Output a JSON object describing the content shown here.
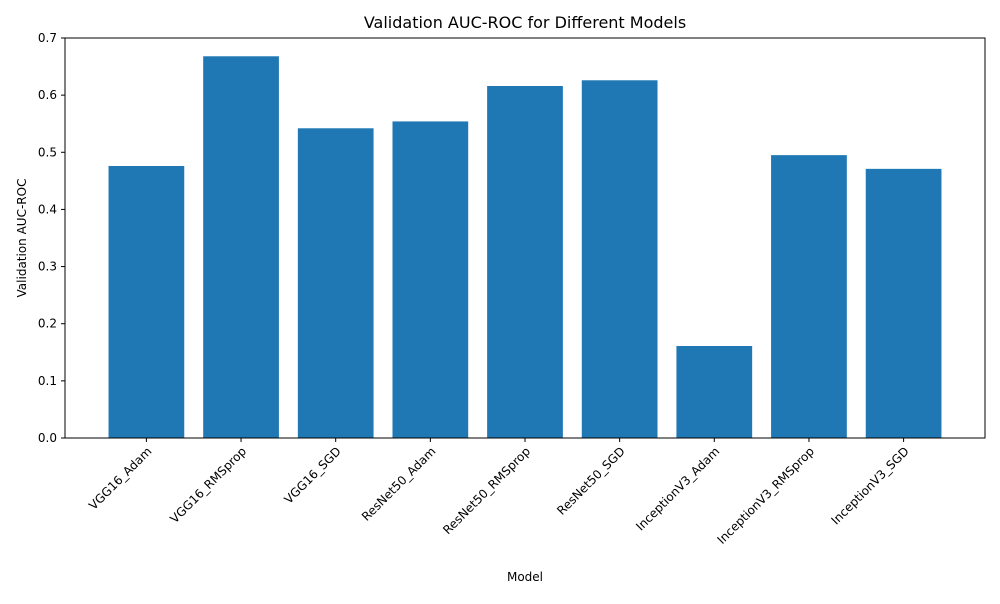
{
  "chart_data": {
    "type": "bar",
    "title": "Validation AUC-ROC for Different Models",
    "xlabel": "Model",
    "ylabel": "Validation AUC-ROC",
    "categories": [
      "VGG16_Adam",
      "VGG16_RMSprop",
      "VGG16_SGD",
      "ResNet50_Adam",
      "ResNet50_RMSprop",
      "ResNet50_SGD",
      "InceptionV3_Adam",
      "InceptionV3_RMSprop",
      "InceptionV3_SGD"
    ],
    "values": [
      0.476,
      0.668,
      0.542,
      0.554,
      0.616,
      0.626,
      0.161,
      0.495,
      0.471
    ],
    "ylim": [
      0,
      0.7
    ],
    "yticks": [
      0.0,
      0.1,
      0.2,
      0.3,
      0.4,
      0.5,
      0.6,
      0.7
    ],
    "ytick_labels": [
      "0.0",
      "0.1",
      "0.2",
      "0.3",
      "0.4",
      "0.5",
      "0.6",
      "0.7"
    ],
    "x_tick_rotation_deg": 45,
    "grid": false,
    "legend": "none",
    "bar_color": "#1f77b4"
  }
}
